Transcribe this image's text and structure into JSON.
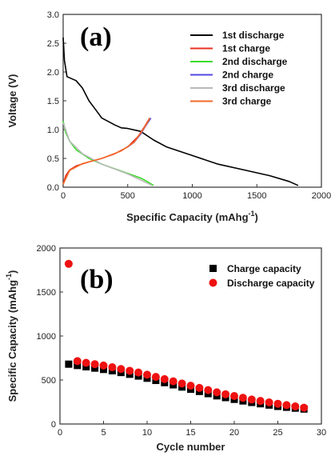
{
  "chart_data": [
    {
      "type": "line",
      "panel_label": "(a)",
      "xlabel": "Specific Capacity (mAhg",
      "xlabel_sup": "-1",
      "xlabel_end": ")",
      "ylabel": "Voltage (V)",
      "xlim": [
        0,
        2000
      ],
      "ylim": [
        0,
        3.0
      ],
      "xticks": [
        "0",
        "500",
        "1000",
        "1500",
        "2000"
      ],
      "yticks": [
        "0.0",
        "0.5",
        "1.0",
        "1.5",
        "2.0",
        "2.5",
        "3.0"
      ],
      "legend_position": "top-right",
      "series": [
        {
          "name": "1st discharge",
          "color": "#000000",
          "x": [
            0,
            10,
            30,
            100,
            150,
            200,
            250,
            300,
            400,
            450,
            500,
            600,
            700,
            800,
            1000,
            1200,
            1400,
            1600,
            1750,
            1820
          ],
          "y": [
            2.6,
            2.2,
            1.92,
            1.85,
            1.72,
            1.5,
            1.35,
            1.2,
            1.08,
            1.03,
            1.02,
            0.97,
            0.82,
            0.7,
            0.55,
            0.4,
            0.3,
            0.2,
            0.1,
            0.03
          ]
        },
        {
          "name": "1st charge",
          "color": "#e8301e",
          "x": [
            0,
            20,
            50,
            100,
            200,
            300,
            400,
            500,
            580,
            630,
            670
          ],
          "y": [
            0.05,
            0.2,
            0.3,
            0.37,
            0.44,
            0.5,
            0.58,
            0.7,
            0.88,
            1.05,
            1.2
          ]
        },
        {
          "name": "2nd discharge",
          "color": "#3ddc2b",
          "x": [
            0,
            20,
            50,
            100,
            200,
            300,
            400,
            500,
            600,
            650,
            700
          ],
          "y": [
            1.15,
            0.95,
            0.8,
            0.65,
            0.5,
            0.4,
            0.32,
            0.24,
            0.16,
            0.1,
            0.03
          ]
        },
        {
          "name": "2nd charge",
          "color": "#5548e0",
          "x": [
            500,
            550,
            600,
            640,
            680
          ],
          "y": [
            0.7,
            0.78,
            0.92,
            1.07,
            1.2
          ]
        },
        {
          "name": "3rd discharge",
          "color": "#b8b8b8",
          "x": [
            0,
            50,
            150,
            300,
            500,
            690
          ],
          "y": [
            1.12,
            0.8,
            0.58,
            0.4,
            0.23,
            0.03
          ]
        },
        {
          "name": "3rd charge",
          "color": "#f06a2a",
          "x": [
            0,
            50,
            150,
            300,
            450,
            550,
            620,
            670
          ],
          "y": [
            0.05,
            0.29,
            0.41,
            0.5,
            0.63,
            0.78,
            1.0,
            1.19
          ]
        }
      ]
    },
    {
      "type": "scatter",
      "panel_label": "(b)",
      "xlabel": "Cycle number",
      "ylabel": "Specific Capacity (mAhg",
      "ylabel_sup": "-1",
      "ylabel_end": ")",
      "xlim": [
        0,
        30
      ],
      "ylim": [
        0,
        2000
      ],
      "xticks": [
        "0",
        "5",
        "10",
        "15",
        "20",
        "25",
        "30"
      ],
      "yticks": [
        "0",
        "500",
        "1000",
        "1500",
        "2000"
      ],
      "legend_position": "top-right",
      "series": [
        {
          "name": "Charge capacity",
          "color": "#000000",
          "marker": "square",
          "x": [
            1,
            2,
            3,
            4,
            5,
            6,
            7,
            8,
            9,
            10,
            11,
            12,
            13,
            14,
            15,
            16,
            17,
            18,
            19,
            20,
            21,
            22,
            23,
            24,
            25,
            26,
            27,
            28
          ],
          "y": [
            680,
            665,
            650,
            635,
            620,
            605,
            585,
            565,
            545,
            520,
            495,
            470,
            445,
            420,
            395,
            370,
            345,
            320,
            300,
            280,
            262,
            245,
            230,
            215,
            200,
            190,
            180,
            170
          ]
        },
        {
          "name": "Discharge capacity",
          "color": "#ee1111",
          "marker": "circle",
          "x": [
            1,
            2,
            3,
            4,
            5,
            6,
            7,
            8,
            9,
            10,
            11,
            12,
            13,
            14,
            15,
            16,
            17,
            18,
            19,
            20,
            21,
            22,
            23,
            24,
            25,
            26,
            27,
            28
          ],
          "y": [
            1820,
            715,
            695,
            680,
            665,
            645,
            625,
            605,
            585,
            560,
            535,
            510,
            485,
            460,
            435,
            410,
            385,
            360,
            338,
            318,
            298,
            278,
            262,
            246,
            230,
            215,
            200,
            185
          ]
        }
      ]
    }
  ]
}
